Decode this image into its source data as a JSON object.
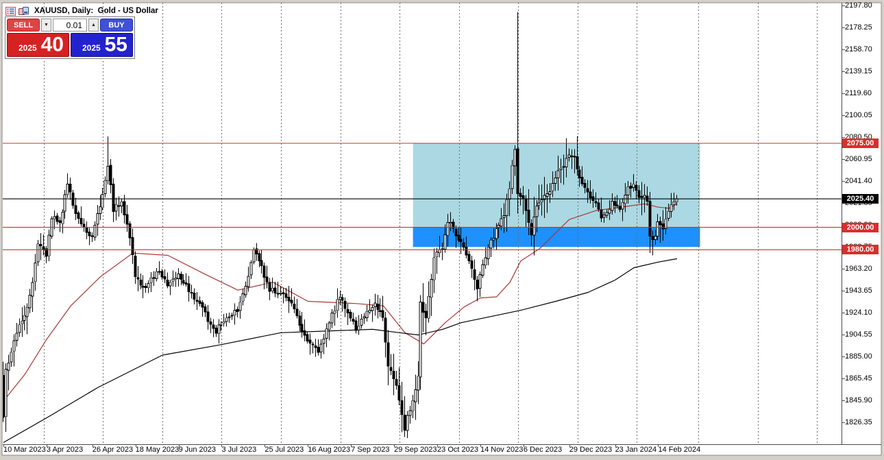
{
  "window": {
    "title": "XAUUSD, Daily:  Gold - US Dollar"
  },
  "trade_panel": {
    "sell_label": "SELL",
    "buy_label": "BUY",
    "volume": "0.01",
    "volume_down_icon": "▼",
    "volume_up_icon": "▲",
    "sell_price_prefix": "2025",
    "sell_price_big": "40",
    "buy_price_prefix": "2025",
    "buy_price_big": "55"
  },
  "colors": {
    "page_bg": "#d4d0c8",
    "chart_bg": "#ffffff",
    "grid": "#6e6e6e",
    "axis": "#4a4a4a",
    "candle_up": "#ffffff",
    "candle_down": "#000000",
    "candle_outline": "#000000",
    "level_line_red": "#c23528",
    "tag_red_bg": "#d92e2e",
    "tag_black_bg": "#000000",
    "current_price_line": "#000000",
    "ma_fast": "#a93734",
    "ma_slow": "#000000",
    "zone_cyan": "#abd8e2",
    "zone_blue": "#1e90ff"
  },
  "chart_data": {
    "type": "candlestick",
    "title": "XAUUSD, Daily: Gold - US Dollar",
    "symbol": "XAUUSD",
    "timeframe": "Daily",
    "description": "Gold - US Dollar",
    "bid": 2025.4,
    "ask": 2025.55,
    "current_price": 2025.4,
    "y_axis": {
      "ticks": [
        2197.8,
        2178.25,
        2158.7,
        2139.15,
        2119.6,
        2100.05,
        2080.5,
        2060.95,
        2041.4,
        2021.85,
        2002.3,
        1982.75,
        1963.2,
        1943.65,
        1924.1,
        1904.55,
        1885.0,
        1865.45,
        1845.9,
        1826.35
      ],
      "tick_step": 19.55
    },
    "x_axis": {
      "labels": [
        "10 Mar 2023",
        "3 Apr 2023",
        "26 Apr 2023",
        "18 May 2023",
        "9 Jun 2023",
        "3 Jul 2023",
        "25 Jul 2023",
        "16 Aug 2023",
        "7 Sep 2023",
        "29 Sep 2023",
        "23 Oct 2023",
        "14 Nov 2023",
        "6 Dec 2023",
        "29 Dec 2023",
        "23 Jan 2024",
        "14 Feb 2024"
      ],
      "label_day_indices": [
        0,
        16,
        33,
        49,
        65,
        81,
        97,
        113,
        129,
        145,
        161,
        177,
        193,
        210,
        227,
        243
      ],
      "grid_day_indices": [
        15,
        37,
        59,
        81,
        103,
        125,
        147,
        169,
        191,
        213,
        235,
        258,
        280,
        302
      ]
    },
    "horizontal_lines": [
      {
        "price": 2075.0,
        "label": "2075.00",
        "color": "red"
      },
      {
        "price": 2000.0,
        "label": "2000.00",
        "color": "red"
      },
      {
        "price": 1980.0,
        "label": "1980.00",
        "color": "red"
      },
      {
        "price": 2025.4,
        "label": "2025.40",
        "color": "black",
        "role": "current-price"
      }
    ],
    "zones": [
      {
        "name": "upper-rectangle-cyan",
        "price_top": 2075.0,
        "price_bottom": 1982.5,
        "day_start": 152,
        "day_end": 258.5,
        "fill": "cyan"
      },
      {
        "name": "lower-rectangle-blue",
        "price_top": 2000.0,
        "price_bottom": 1982.5,
        "day_start": 152,
        "day_end": 258.5,
        "fill": "blue"
      }
    ],
    "candles": {
      "count": 251,
      "close_waypoints": [
        [
          0,
          1831
        ],
        [
          1,
          1872
        ],
        [
          3,
          1890
        ],
        [
          6,
          1912
        ],
        [
          9,
          1928
        ],
        [
          11,
          1950
        ],
        [
          13,
          1985
        ],
        [
          16,
          1975
        ],
        [
          18,
          2010
        ],
        [
          21,
          2002
        ],
        [
          24,
          2040
        ],
        [
          27,
          2010
        ],
        [
          30,
          2000
        ],
        [
          33,
          1990
        ],
        [
          36,
          2020
        ],
        [
          39,
          2055
        ],
        [
          41,
          2016
        ],
        [
          44,
          2022
        ],
        [
          47,
          1990
        ],
        [
          49,
          1957
        ],
        [
          53,
          1944
        ],
        [
          57,
          1962
        ],
        [
          61,
          1948
        ],
        [
          65,
          1960
        ],
        [
          69,
          1943
        ],
        [
          73,
          1932
        ],
        [
          77,
          1913
        ],
        [
          79,
          1908
        ],
        [
          83,
          1921
        ],
        [
          87,
          1925
        ],
        [
          91,
          1958
        ],
        [
          93,
          1978
        ],
        [
          95,
          1970
        ],
        [
          99,
          1945
        ],
        [
          103,
          1942
        ],
        [
          107,
          1934
        ],
        [
          111,
          1907
        ],
        [
          115,
          1894
        ],
        [
          117,
          1890
        ],
        [
          121,
          1915
        ],
        [
          125,
          1940
        ],
        [
          128,
          1925
        ],
        [
          131,
          1910
        ],
        [
          135,
          1925
        ],
        [
          138,
          1930
        ],
        [
          141,
          1920
        ],
        [
          143,
          1875
        ],
        [
          146,
          1860
        ],
        [
          149,
          1820
        ],
        [
          150,
          1833
        ],
        [
          152,
          1845
        ],
        [
          154,
          1868
        ],
        [
          155,
          1932
        ],
        [
          157,
          1920
        ],
        [
          160,
          1974
        ],
        [
          163,
          1980
        ],
        [
          165,
          2006
        ],
        [
          167,
          1998
        ],
        [
          170,
          1985
        ],
        [
          173,
          1970
        ],
        [
          176,
          1946
        ],
        [
          178,
          1965
        ],
        [
          180,
          1980
        ],
        [
          183,
          1999
        ],
        [
          186,
          2010
        ],
        [
          188,
          2036
        ],
        [
          190,
          2072
        ],
        [
          191,
          2029
        ],
        [
          193,
          2025
        ],
        [
          195,
          2004
        ],
        [
          196,
          1995
        ],
        [
          198,
          2020
        ],
        [
          200,
          2027
        ],
        [
          203,
          2033
        ],
        [
          205,
          2046
        ],
        [
          208,
          2054
        ],
        [
          210,
          2065
        ],
        [
          212,
          2062
        ],
        [
          214,
          2045
        ],
        [
          217,
          2030
        ],
        [
          220,
          2023
        ],
        [
          222,
          2006
        ],
        [
          224,
          2014
        ],
        [
          226,
          2021
        ],
        [
          229,
          2017
        ],
        [
          232,
          2035
        ],
        [
          234,
          2039
        ],
        [
          236,
          2025
        ],
        [
          238,
          2030
        ],
        [
          239,
          2022
        ],
        [
          240,
          1992
        ],
        [
          241,
          1990
        ],
        [
          242,
          1992
        ],
        [
          243,
          2004
        ],
        [
          245,
          2000
        ],
        [
          246,
          2008
        ],
        [
          248,
          2018
        ],
        [
          249,
          2022
        ],
        [
          250,
          2025.4
        ]
      ],
      "special": {
        "39": {
          "high": 2081
        },
        "149": {
          "low": 1813
        },
        "191": {
          "high": 2192
        },
        "240": {
          "low": 1977
        },
        "241": {
          "low": 1975
        }
      }
    },
    "moving_averages": [
      {
        "name": "fast-ma-red",
        "points": [
          [
            0,
            1845
          ],
          [
            8,
            1869
          ],
          [
            16,
            1900
          ],
          [
            25,
            1930
          ],
          [
            36,
            1956
          ],
          [
            48,
            1977
          ],
          [
            61,
            1975
          ],
          [
            75,
            1958
          ],
          [
            87,
            1944
          ],
          [
            100,
            1951
          ],
          [
            113,
            1934
          ],
          [
            131,
            1932
          ],
          [
            141,
            1930
          ],
          [
            149,
            1906
          ],
          [
            156,
            1896
          ],
          [
            164,
            1915
          ],
          [
            171,
            1929
          ],
          [
            177,
            1937
          ],
          [
            183,
            1938
          ],
          [
            188,
            1951
          ],
          [
            192,
            1970
          ],
          [
            199,
            1981
          ],
          [
            210,
            2007
          ],
          [
            220,
            2015
          ],
          [
            232,
            2019
          ],
          [
            238,
            2021
          ],
          [
            243,
            2018
          ],
          [
            247,
            2017
          ],
          [
            250,
            2021
          ]
        ]
      },
      {
        "name": "slow-ma-black",
        "points": [
          [
            0,
            1808
          ],
          [
            16,
            1830
          ],
          [
            35,
            1857
          ],
          [
            59,
            1886
          ],
          [
            80,
            1895
          ],
          [
            103,
            1906
          ],
          [
            126,
            1908
          ],
          [
            137,
            1909
          ],
          [
            147,
            1906
          ],
          [
            154,
            1904
          ],
          [
            163,
            1909
          ],
          [
            170,
            1915
          ],
          [
            182,
            1921
          ],
          [
            192,
            1926
          ],
          [
            205,
            1934
          ],
          [
            217,
            1942
          ],
          [
            227,
            1953
          ],
          [
            234,
            1964
          ],
          [
            243,
            1969
          ],
          [
            250,
            1972
          ]
        ]
      }
    ]
  }
}
